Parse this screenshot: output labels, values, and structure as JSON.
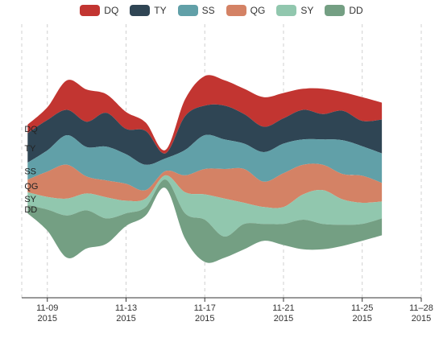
{
  "chart_data": {
    "type": "area",
    "subtype": "themeRiver",
    "legend_position": "top-center",
    "grid": "vertical-dashed",
    "x_tick_labels": [
      {
        "date": "2015-11-09",
        "line1": "11-09",
        "line2": "2015"
      },
      {
        "date": "2015-11-13",
        "line1": "11-13",
        "line2": "2015"
      },
      {
        "date": "2015-11-17",
        "line1": "11-17",
        "line2": "2015"
      },
      {
        "date": "2015-11-21",
        "line1": "11-21",
        "line2": "2015"
      },
      {
        "date": "2015-11-25",
        "line1": "11-25",
        "line2": "2015"
      },
      {
        "date": "2015-11-28",
        "line1": "11–28",
        "line2": "2015"
      }
    ],
    "x_dates": [
      "2015-11-08",
      "2015-11-09",
      "2015-11-10",
      "2015-11-11",
      "2015-11-12",
      "2015-11-13",
      "2015-11-14",
      "2015-11-15",
      "2015-11-16",
      "2015-11-17",
      "2015-11-18",
      "2015-11-19",
      "2015-11-20",
      "2015-11-21",
      "2015-11-22",
      "2015-11-23",
      "2015-11-24",
      "2015-11-25",
      "2015-11-26"
    ],
    "series": [
      {
        "name": "DQ",
        "color": "#c23531",
        "values": [
          10,
          15,
          35,
          38,
          22,
          20,
          10,
          4,
          20,
          35,
          30,
          30,
          35,
          30,
          25,
          30,
          22,
          28,
          20
        ]
      },
      {
        "name": "TY",
        "color": "#2f4554",
        "values": [
          35,
          36,
          30,
          30,
          40,
          30,
          40,
          6,
          40,
          35,
          40,
          35,
          30,
          30,
          35,
          30,
          35,
          30,
          40
        ]
      },
      {
        "name": "SS",
        "color": "#61a0a8",
        "values": [
          20,
          25,
          35,
          35,
          40,
          35,
          30,
          15,
          30,
          40,
          35,
          30,
          35,
          35,
          30,
          30,
          40,
          35,
          35
        ]
      },
      {
        "name": "QG",
        "color": "#d48265",
        "values": [
          15,
          30,
          40,
          20,
          20,
          20,
          10,
          5,
          20,
          30,
          35,
          40,
          30,
          40,
          35,
          30,
          30,
          32,
          22
        ]
      },
      {
        "name": "SY",
        "color": "#91c7ae",
        "values": [
          15,
          15,
          20,
          20,
          25,
          15,
          10,
          5,
          25,
          30,
          45,
          25,
          20,
          20,
          30,
          40,
          30,
          25,
          20
        ]
      },
      {
        "name": "DD",
        "color": "#749f83",
        "values": [
          10,
          25,
          50,
          45,
          30,
          15,
          10,
          10,
          30,
          50,
          25,
          30,
          20,
          25,
          35,
          30,
          25,
          20,
          20
        ]
      }
    ]
  }
}
